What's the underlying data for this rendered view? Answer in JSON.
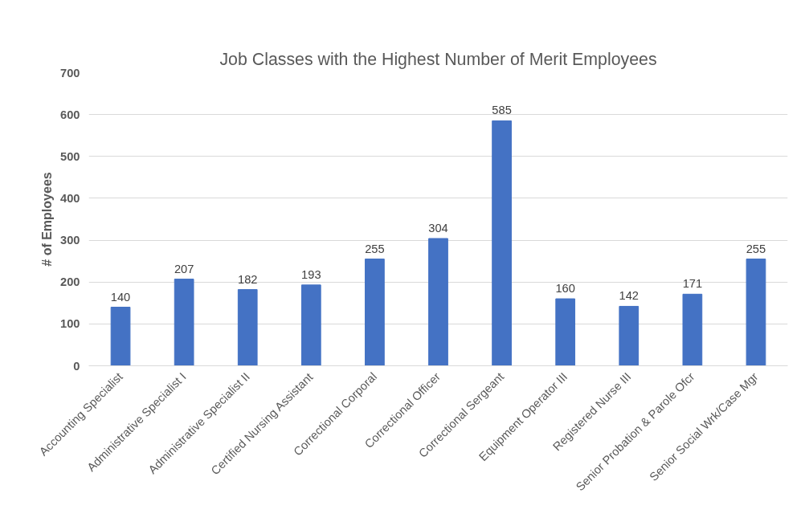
{
  "chart_data": {
    "type": "bar",
    "title": "Job Classes with the Highest Number of Merit Employees",
    "ylabel": "# of Employees",
    "categories": [
      "Accounting Specialist",
      "Administrative Specialist I",
      "Administrative Specialist II",
      "Certified Nursing Assistant",
      "Correctional Corporal",
      "Correctional Officer",
      "Correctional Sergeant",
      "Equipment Operator III",
      "Registered Nurse III",
      "Senior Probation & Parole Ofcr",
      "Senior Social Wrk/Case Mgr"
    ],
    "values": [
      140,
      207,
      182,
      193,
      255,
      304,
      585,
      160,
      142,
      171,
      255
    ],
    "color": "#4472c4",
    "ylim": [
      0,
      700
    ],
    "yticks": [
      0,
      100,
      200,
      300,
      400,
      500,
      600,
      700
    ],
    "grid": "y",
    "data_labels": true
  }
}
